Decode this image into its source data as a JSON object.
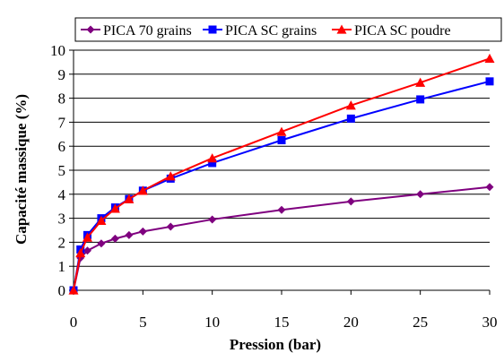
{
  "chart_data": {
    "type": "line",
    "title": "",
    "xlabel": "Pression (bar)",
    "ylabel": "Capacité massique (%)",
    "xlim": [
      0,
      30
    ],
    "ylim": [
      0,
      10
    ],
    "x_ticks": [
      0,
      5,
      10,
      15,
      20,
      25,
      30
    ],
    "y_ticks": [
      0,
      1,
      2,
      3,
      4,
      5,
      6,
      7,
      8,
      9,
      10
    ],
    "grid": "horizontal",
    "legend_position": "top",
    "series": [
      {
        "name": "PICA 70 grains",
        "color": "#7f007f",
        "marker": "diamond",
        "x": [
          0,
          0.5,
          1,
          2,
          3,
          4,
          5,
          7,
          10,
          15,
          20,
          25,
          30
        ],
        "y": [
          0,
          1.35,
          1.65,
          1.95,
          2.15,
          2.3,
          2.45,
          2.65,
          2.95,
          3.35,
          3.7,
          4.0,
          4.3
        ]
      },
      {
        "name": "PICA SC grains",
        "color": "#0000ff",
        "marker": "square",
        "x": [
          0,
          0.5,
          1,
          2,
          3,
          4,
          5,
          7,
          10,
          15,
          20,
          25,
          30
        ],
        "y": [
          0,
          1.7,
          2.3,
          3.0,
          3.45,
          3.8,
          4.15,
          4.65,
          5.3,
          6.25,
          7.15,
          7.95,
          8.7
        ]
      },
      {
        "name": "PICA SC poudre",
        "color": "#ff0000",
        "marker": "triangle",
        "x": [
          0,
          0.5,
          1,
          2,
          3,
          4,
          5,
          7,
          10,
          15,
          20,
          25,
          30
        ],
        "y": [
          0,
          1.55,
          2.2,
          2.9,
          3.4,
          3.8,
          4.15,
          4.75,
          5.5,
          6.6,
          7.7,
          8.65,
          9.65
        ]
      }
    ]
  }
}
